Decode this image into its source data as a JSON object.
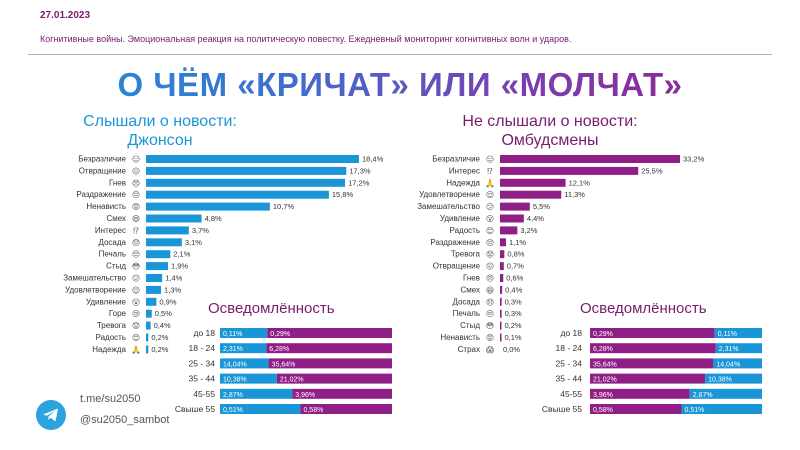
{
  "header": {
    "date": "27.01.2023",
    "subtitle": "Когнитивные войны. Эмоциональная реакция на политическую повестку. Ежедневный мониторинг когнитивных волн и ударов.",
    "title": "О ЧЁМ «КРИЧАТ» ИЛИ «МОЛЧАТ»"
  },
  "colors": {
    "blue": "#1a96d8",
    "purple": "#8f1f86",
    "dark": "#7a1b6e"
  },
  "chart_data": [
    {
      "type": "bar",
      "orientation": "horizontal",
      "title": "Слышали о новости: Джонсон",
      "title_lines": [
        "Слышали о новости:",
        "Джонсон"
      ],
      "categories": [
        "Безразличие",
        "Отвращение",
        "Гнев",
        "Раздражение",
        "Ненависть",
        "Смех",
        "Интерес",
        "Досада",
        "Печаль",
        "Стыд",
        "Замешательство",
        "Удовлетворение",
        "Удивление",
        "Горе",
        "Тревога",
        "Радость",
        "Надежда"
      ],
      "icons": [
        "😑",
        "😖",
        "😠",
        "😣",
        "😡",
        "😆",
        "⁉",
        "😞",
        "😔",
        "😳",
        "😕",
        "😌",
        "😮",
        "😢",
        "😟",
        "😊",
        "🙏"
      ],
      "values": [
        18.4,
        17.3,
        17.2,
        15.8,
        10.7,
        4.8,
        3.7,
        3.1,
        2.1,
        1.9,
        1.4,
        1.3,
        0.9,
        0.5,
        0.4,
        0.2,
        0.2
      ],
      "labels": [
        "18,4%",
        "17,3%",
        "17,2%",
        "15,8%",
        "10,7%",
        "4,8%",
        "3,7%",
        "3,1%",
        "2,1%",
        "1,9%",
        "1,4%",
        "1,3%",
        "0,9%",
        "0,5%",
        "0,4%",
        "0,2%",
        "0,2%"
      ],
      "color": "#1a96d8"
    },
    {
      "type": "bar",
      "orientation": "horizontal",
      "title": "Не слышали о новости: Омбудсмены",
      "title_lines": [
        "Не слышали о новости:",
        "Омбудсмены"
      ],
      "categories": [
        "Безразличие",
        "Интерес",
        "Надежда",
        "Удовлетворение",
        "Замешательство",
        "Удивление",
        "Радость",
        "Раздражение",
        "Тревога",
        "Отвращение",
        "Гнев",
        "Смех",
        "Досада",
        "Печаль",
        "Стыд",
        "Ненависть",
        "Страх"
      ],
      "icons": [
        "😑",
        "⁉",
        "🙏",
        "😌",
        "😕",
        "😮",
        "😊",
        "😣",
        "😟",
        "😖",
        "😠",
        "😆",
        "😞",
        "😔",
        "😳",
        "😡",
        "😱"
      ],
      "values": [
        33.2,
        25.5,
        12.1,
        11.3,
        5.5,
        4.4,
        3.2,
        1.1,
        0.8,
        0.7,
        0.6,
        0.4,
        0.3,
        0.3,
        0.2,
        0.1,
        0.0
      ],
      "labels": [
        "33,2%",
        "25,5%",
        "12,1%",
        "11,3%",
        "5,5%",
        "4,4%",
        "3,2%",
        "1,1%",
        "0,8%",
        "0,7%",
        "0,6%",
        "0,4%",
        "0,3%",
        "0,3%",
        "0,2%",
        "0,1%",
        "0,0%"
      ],
      "color": "#8f1f86"
    },
    {
      "type": "bar",
      "stacked": true,
      "orientation": "horizontal",
      "title": "Осведомлённость",
      "categories": [
        "до 18",
        "18 - 24",
        "25 - 34",
        "35 - 44",
        "45-55",
        "Свыше 55"
      ],
      "series": [
        {
          "key": "heard",
          "color": "#1a96d8",
          "values": [
            0.11,
            2.31,
            14.04,
            10.38,
            2.87,
            0.51
          ],
          "labels": [
            "0,11%",
            "2,31%",
            "14,04%",
            "10,38%",
            "2,87%",
            "0,51%"
          ]
        },
        {
          "key": "not_heard",
          "color": "#8f1f86",
          "values": [
            0.29,
            6.28,
            35.64,
            21.02,
            3.96,
            0.58
          ],
          "labels": [
            "0,29%",
            "6,28%",
            "35,64%",
            "21,02%",
            "3,96%",
            "0,58%"
          ]
        }
      ],
      "order": [
        "heard",
        "not_heard"
      ]
    },
    {
      "type": "bar",
      "stacked": true,
      "orientation": "horizontal",
      "title": "Осведомлённость",
      "categories": [
        "до 18",
        "18 - 24",
        "25 - 34",
        "35 - 44",
        "45-55",
        "Свыше 55"
      ],
      "series": [
        {
          "key": "not_heard",
          "color": "#8f1f86",
          "values": [
            0.29,
            6.28,
            35.64,
            21.02,
            3.96,
            0.58
          ],
          "labels": [
            "0,29%",
            "6,28%",
            "35,64%",
            "21,02%",
            "3,96%",
            "0,58%"
          ]
        },
        {
          "key": "heard",
          "color": "#1a96d8",
          "values": [
            0.11,
            2.31,
            14.04,
            10.38,
            2.87,
            0.51
          ],
          "labels": [
            "0,11%",
            "2,31%",
            "14,04%",
            "10,38%",
            "2,87%",
            "0,51%"
          ]
        }
      ],
      "order": [
        "not_heard",
        "heard"
      ]
    }
  ],
  "footer": {
    "telegram_icon": "telegram-icon",
    "link1": "t.me/su2050",
    "link2": "@su2050_sambot"
  }
}
